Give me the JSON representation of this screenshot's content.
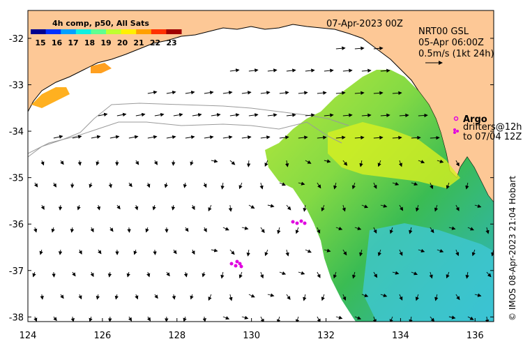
{
  "title": {
    "date": "07-Apr-2023 00Z",
    "legend_title": "4h comp, p50, All Sats"
  },
  "colorbar": {
    "ticks": [
      "15",
      "16",
      "17",
      "18",
      "19",
      "20",
      "21",
      "22",
      "23"
    ],
    "colors": [
      "#00008f",
      "#0030ff",
      "#00a0ff",
      "#10f0e0",
      "#60ff90",
      "#c0ff30",
      "#fff000",
      "#ffa000",
      "#ff3000",
      "#a00000"
    ]
  },
  "current_info": {
    "line1": "NRT00 GSL",
    "line2": "05-Apr 06:00Z",
    "line3": "0.5m/s (1kt 24h)"
  },
  "argo": {
    "label": "Argo",
    "drifters_line1": "drifters@12h",
    "drifters_line2": "to 07/04 12Z",
    "color": "#e000e0"
  },
  "credit": "© IMOS 08-Apr-2023 21:04 Hobart",
  "axes": {
    "x_ticks": [
      "124",
      "126",
      "128",
      "130",
      "132",
      "134",
      "136"
    ],
    "y_ticks": [
      "-32",
      "-33",
      "-34",
      "-35",
      "-36",
      "-37",
      "-38"
    ],
    "lon_range": [
      124,
      136.5
    ],
    "lat_range": [
      -31.4,
      -38.1
    ]
  },
  "colors": {
    "land": "#fdc896",
    "ocean": "#ffffff"
  }
}
